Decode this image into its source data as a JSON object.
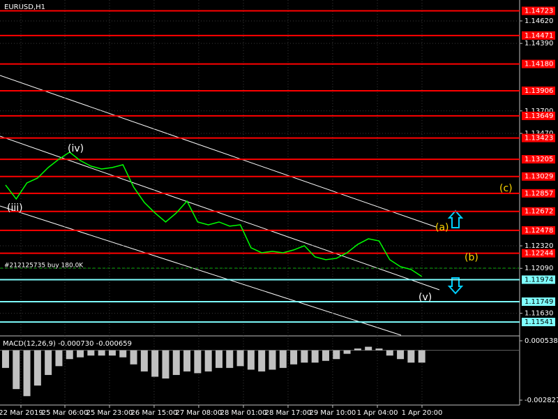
{
  "chart_data": [
    {
      "type": "line",
      "title": "EURUSD,H1",
      "x": [
        0,
        1,
        2,
        3,
        4,
        5,
        6,
        7,
        8,
        9,
        10,
        11,
        12,
        13,
        14,
        15,
        16,
        17,
        18,
        19,
        20,
        21,
        22,
        23,
        24,
        25,
        26,
        27,
        28,
        29,
        30,
        31,
        32,
        33,
        34,
        35,
        36,
        37,
        38,
        39
      ],
      "series": [
        {
          "color": "#00ff00",
          "values": [
            1.12942,
            1.12799,
            1.12963,
            1.13013,
            1.13121,
            1.13206,
            1.13278,
            1.13192,
            1.13135,
            1.13106,
            1.13121,
            1.13149,
            1.12921,
            1.12764,
            1.12656,
            1.12564,
            1.12656,
            1.12778,
            1.12564,
            1.12535,
            1.12564,
            1.12521,
            1.12535,
            1.123,
            1.12249,
            1.12264,
            1.12249,
            1.12278,
            1.12321,
            1.12207,
            1.12178,
            1.12192,
            1.12249,
            1.12335,
            1.12392,
            1.1237,
            1.12178,
            1.12107,
            1.12078,
            1.12007
          ]
        }
      ],
      "xlim": [
        -0.52,
        48.17
      ],
      "xticks": [
        {
          "value": 1.44,
          "label": "22 Mar 2019"
        },
        {
          "value": 5.56,
          "label": "25 Mar 06:00"
        },
        {
          "value": 9.74,
          "label": "25 Mar 23:00"
        },
        {
          "value": 13.92,
          "label": "26 Mar 15:00"
        },
        {
          "value": 18.1,
          "label": "27 Mar 08:00"
        },
        {
          "value": 22.29,
          "label": "28 Mar 01:00"
        },
        {
          "value": 26.47,
          "label": "28 Mar 17:00"
        },
        {
          "value": 30.65,
          "label": "29 Mar 10:00"
        },
        {
          "value": 34.84,
          "label": "1 Apr 04:00"
        },
        {
          "value": 39.02,
          "label": "1 Apr 20:00"
        }
      ],
      "ylim": [
        1.11406,
        1.14834
      ],
      "yticks": [
        {
          "value": 1.1462,
          "label": "1.14620"
        },
        {
          "value": 1.1439,
          "label": "1.14390"
        },
        {
          "value": 1.137,
          "label": "1.13700"
        },
        {
          "value": 1.1347,
          "label": "1.13470"
        },
        {
          "value": 1.1232,
          "label": "1.12320"
        },
        {
          "value": 1.1209,
          "label": "1.12090"
        },
        {
          "value": 1.1163,
          "label": "1.11630"
        }
      ],
      "grid": true,
      "resistance_color": "#ff0000",
      "resistance_levels": [
        1.14723,
        1.14471,
        {
          "value": 1.1418,
          "label": "1.14180"
        },
        1.13906,
        1.13649,
        1.13423,
        1.13205,
        1.13029,
        1.12857,
        1.12672,
        1.12478,
        1.12244
      ],
      "support_color": "#7fffff",
      "support_levels": [
        1.11974,
        1.11749,
        1.11541
      ],
      "annotations": [
        {
          "text": "(iii)",
          "color": "#ffffff"
        },
        {
          "text": "(iv)",
          "color": "#ffffff"
        },
        {
          "text": "(v)",
          "color": "#ffffff"
        },
        {
          "text": "(a)",
          "color": "#ffd700"
        },
        {
          "text": "(b)",
          "color": "#ffd700"
        },
        {
          "text": "(c)",
          "color": "#ffd700"
        },
        {
          "text": "#212125735 buy 180.0K",
          "color": "#ffffff"
        }
      ]
    },
    {
      "type": "bar",
      "title": "MACD(12,26,9) -0.000730 -0.000659",
      "color": "#c0c0c0",
      "x": [
        0,
        1,
        2,
        3,
        4,
        5,
        6,
        7,
        8,
        9,
        10,
        11,
        12,
        13,
        14,
        15,
        16,
        17,
        18,
        19,
        20,
        21,
        22,
        23,
        24,
        25,
        26,
        27,
        28,
        29,
        30,
        31,
        32,
        33,
        34,
        35,
        36,
        37,
        38,
        39
      ],
      "values": [
        -0.001,
        -0.0022,
        -0.0026,
        -0.002,
        -0.0014,
        -0.0009,
        -0.0005,
        -0.0004,
        -0.0003,
        -0.0003,
        -0.0003,
        -0.0004,
        -0.0008,
        -0.0012,
        -0.0015,
        -0.0016,
        -0.0014,
        -0.0012,
        -0.0013,
        -0.0012,
        -0.001,
        -0.001,
        -0.0009,
        -0.0011,
        -0.0012,
        -0.0011,
        -0.001,
        -0.0008,
        -0.0007,
        -0.0007,
        -0.0006,
        -0.0005,
        -0.0002,
        0.0001,
        0.0002,
        0.0001,
        -0.0003,
        -0.0005,
        -0.0007,
        -0.0007
      ],
      "xlim": [
        -0.52,
        48.17
      ],
      "ylim": [
        -0.003104,
        0.000736
      ],
      "yticks": [
        0.000538,
        -0.002827
      ]
    }
  ]
}
